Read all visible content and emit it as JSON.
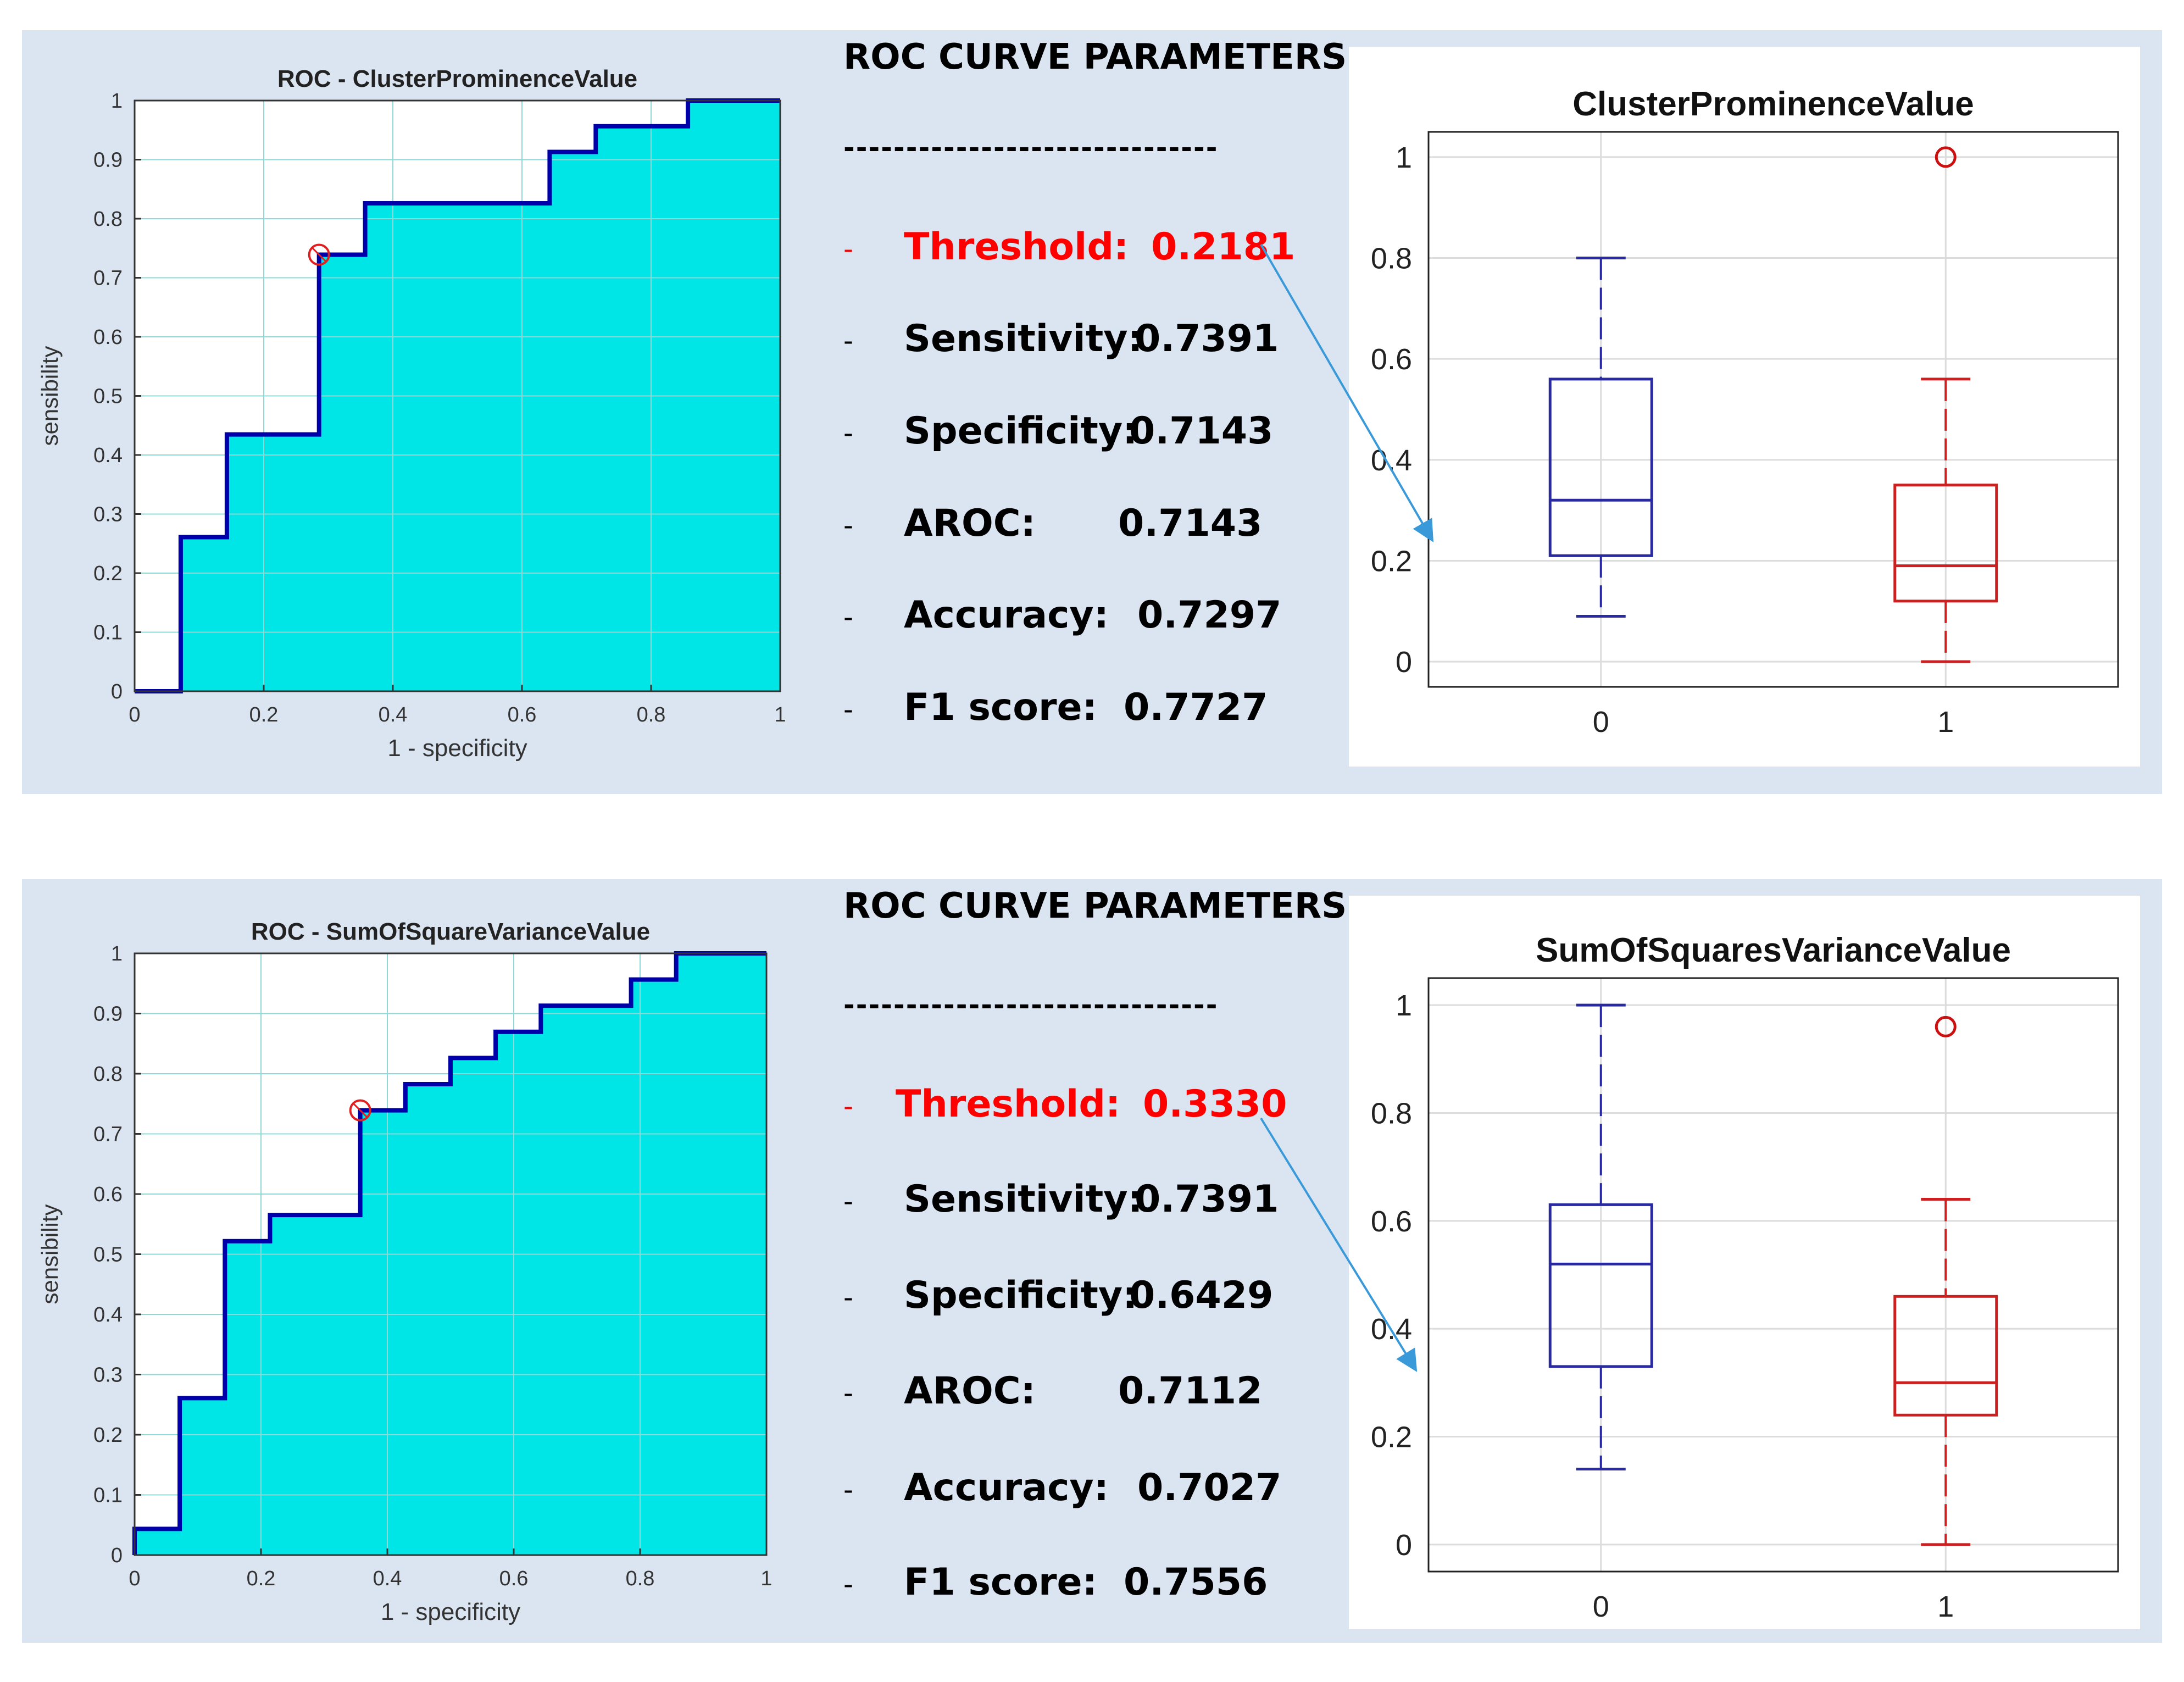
{
  "colors": {
    "panel_bg": "#dbe5f1",
    "roc_fill": "#00e5e5",
    "roc_line": "#0000aa",
    "box0": "#2a2aa0",
    "box1": "#cc2020",
    "threshold_red": "#ff0000",
    "arrow": "#3a9ad9"
  },
  "chart_data": [
    {
      "type": "line",
      "title": "ROC - ClusterProminenceValue",
      "xlabel": "1 - specificity",
      "ylabel": "sensibility",
      "xlim": [
        0,
        1
      ],
      "ylim": [
        0,
        1
      ],
      "grid": true,
      "xticks": [
        "0",
        "0.2",
        "0.4",
        "0.6",
        "0.8",
        "1"
      ],
      "yticks": [
        "0",
        "0.1",
        "0.2",
        "0.3",
        "0.4",
        "0.5",
        "0.6",
        "0.7",
        "0.8",
        "0.9",
        "1"
      ],
      "series": [
        {
          "name": "ROC",
          "x": [
            0,
            0.0714,
            0.0714,
            0.1429,
            0.1429,
            0.2857,
            0.2857,
            0.3571,
            0.3571,
            0.6429,
            0.6429,
            0.7143,
            0.7143,
            0.8571,
            0.8571,
            1
          ],
          "y": [
            0,
            0,
            0.2609,
            0.2609,
            0.4348,
            0.4348,
            0.7391,
            0.7391,
            0.8261,
            0.8261,
            0.913,
            0.913,
            0.9565,
            0.9565,
            1,
            1
          ]
        }
      ],
      "operating_point": [
        0.2857,
        0.7391
      ]
    },
    {
      "type": "table",
      "title": "ROC CURVE PARAMETERS",
      "separator": "------------------------------",
      "rows": [
        {
          "dash": "-",
          "label": "Threshold:",
          "value": "0.2181",
          "highlight": true
        },
        {
          "dash": "-",
          "label": "Sensitivity:",
          "value": "0.7391",
          "highlight": false
        },
        {
          "dash": "-",
          "label": "Specificity:",
          "value": "0.7143",
          "highlight": false
        },
        {
          "dash": "-",
          "label": "AROC:",
          "value": "0.7143",
          "highlight": false
        },
        {
          "dash": "-",
          "label": "Accuracy:",
          "value": "0.7297",
          "highlight": false
        },
        {
          "dash": "-",
          "label": "F1 score:",
          "value": "0.7727",
          "highlight": false
        }
      ]
    },
    {
      "type": "box",
      "title": "ClusterProminenceValue",
      "categories": [
        "0",
        "1"
      ],
      "ylim": [
        -0.05,
        1.05
      ],
      "yticks": [
        "0",
        "0.2",
        "0.4",
        "0.6",
        "0.8",
        "1"
      ],
      "grid": true,
      "boxes": [
        {
          "name": "0",
          "whisker_low": 0.09,
          "q1": 0.21,
          "median": 0.32,
          "q3": 0.56,
          "whisker_high": 0.8,
          "outliers": []
        },
        {
          "name": "1",
          "whisker_low": 0.0,
          "q1": 0.12,
          "median": 0.19,
          "q3": 0.35,
          "whisker_high": 0.56,
          "outliers": [
            1.0
          ]
        }
      ]
    },
    {
      "type": "line",
      "title": "ROC - SumOfSquareVarianceValue",
      "xlabel": "1 - specificity",
      "ylabel": "sensibility",
      "xlim": [
        0,
        1
      ],
      "ylim": [
        0,
        1
      ],
      "grid": true,
      "xticks": [
        "0",
        "0.2",
        "0.4",
        "0.6",
        "0.8",
        "1"
      ],
      "yticks": [
        "0",
        "0.1",
        "0.2",
        "0.3",
        "0.4",
        "0.5",
        "0.6",
        "0.7",
        "0.8",
        "0.9",
        "1"
      ],
      "series": [
        {
          "name": "ROC",
          "x": [
            0,
            0,
            0.0714,
            0.0714,
            0.1429,
            0.1429,
            0.2143,
            0.2143,
            0.3571,
            0.3571,
            0.4286,
            0.4286,
            0.5,
            0.5,
            0.5714,
            0.5714,
            0.6429,
            0.6429,
            0.7857,
            0.7857,
            0.8571,
            0.8571,
            1
          ],
          "y": [
            0,
            0.0435,
            0.0435,
            0.2609,
            0.2609,
            0.5217,
            0.5217,
            0.5652,
            0.5652,
            0.7391,
            0.7391,
            0.7826,
            0.7826,
            0.8261,
            0.8261,
            0.8696,
            0.8696,
            0.913,
            0.913,
            0.9565,
            0.9565,
            1,
            1
          ]
        }
      ],
      "operating_point": [
        0.3571,
        0.7391
      ]
    },
    {
      "type": "table",
      "title": "ROC CURVE PARAMETERS",
      "separator": "------------------------------",
      "rows": [
        {
          "dash": "-",
          "label": "Threshold:",
          "value": "0.3330",
          "highlight": true
        },
        {
          "dash": "-",
          "label": "Sensitivity:",
          "value": "0.7391",
          "highlight": false
        },
        {
          "dash": "-",
          "label": "Specificity:",
          "value": "0.6429",
          "highlight": false
        },
        {
          "dash": "-",
          "label": "AROC:",
          "value": "0.7112",
          "highlight": false
        },
        {
          "dash": "-",
          "label": "Accuracy:",
          "value": "0.7027",
          "highlight": false
        },
        {
          "dash": "-",
          "label": "F1 score:",
          "value": "0.7556",
          "highlight": false
        }
      ]
    },
    {
      "type": "box",
      "title": "SumOfSquaresVarianceValue",
      "categories": [
        "0",
        "1"
      ],
      "ylim": [
        -0.05,
        1.05
      ],
      "yticks": [
        "0",
        "0.2",
        "0.4",
        "0.6",
        "0.8",
        "1"
      ],
      "grid": true,
      "boxes": [
        {
          "name": "0",
          "whisker_low": 0.14,
          "q1": 0.33,
          "median": 0.52,
          "q3": 0.63,
          "whisker_high": 1.0,
          "outliers": []
        },
        {
          "name": "1",
          "whisker_low": 0.0,
          "q1": 0.24,
          "median": 0.3,
          "q3": 0.46,
          "whisker_high": 0.64,
          "outliers": [
            0.96
          ]
        }
      ]
    }
  ]
}
